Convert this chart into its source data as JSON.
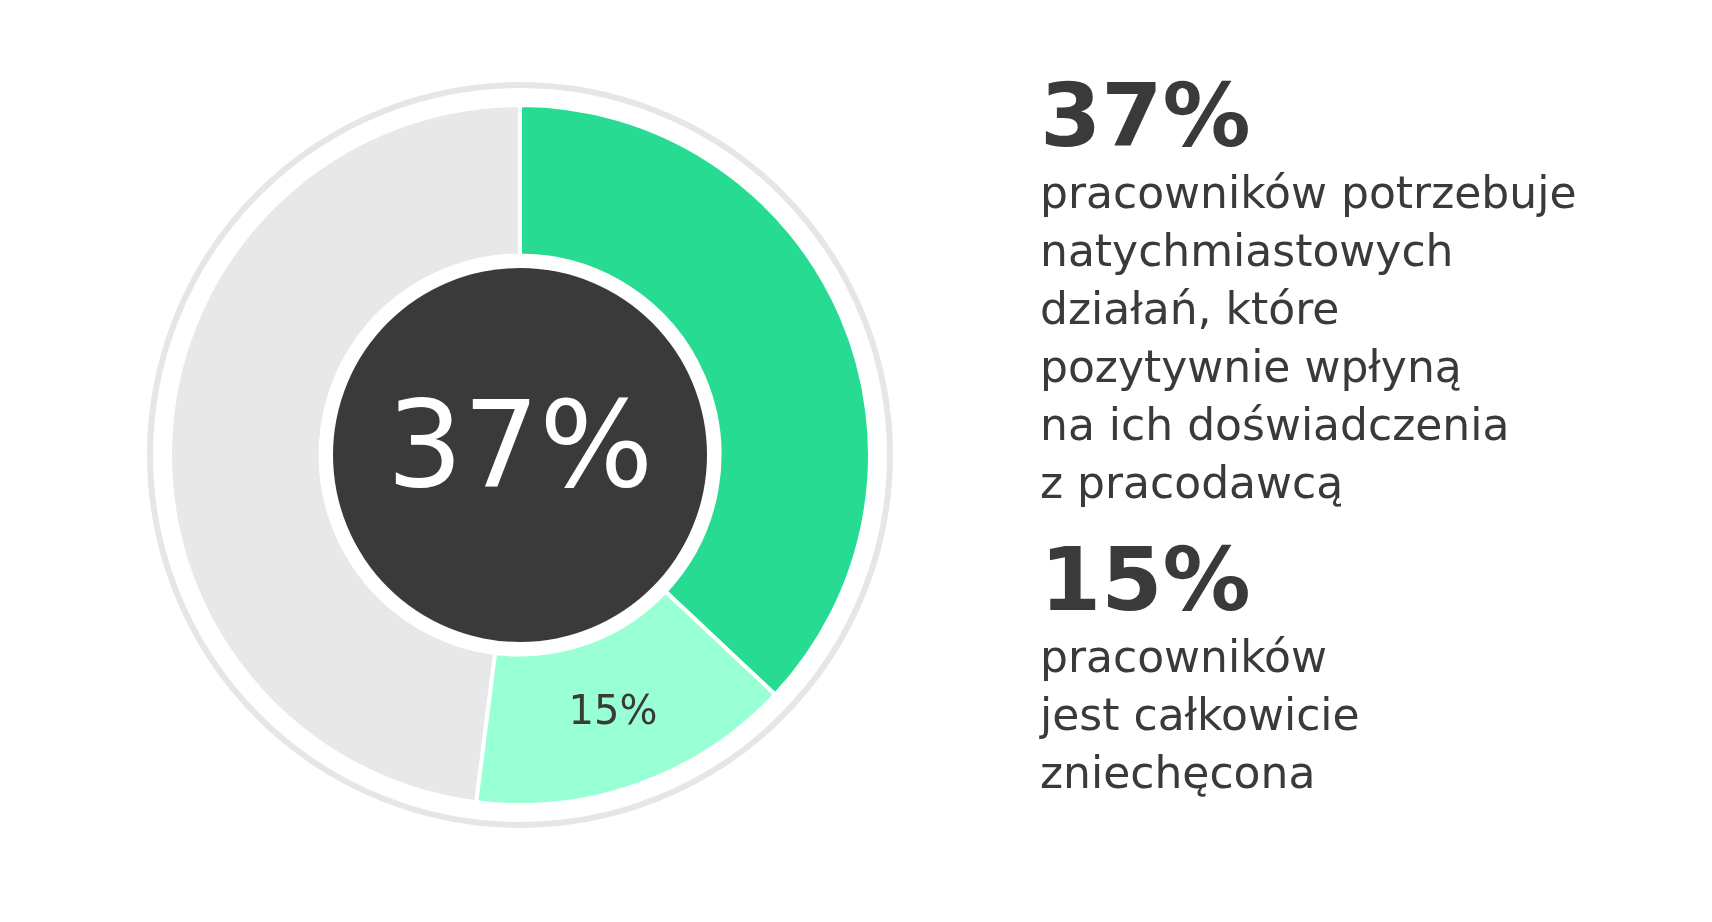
{
  "chart_data": {
    "type": "donut",
    "categories": [
      null,
      null,
      null
    ],
    "values": [
      37,
      15,
      48
    ],
    "colors": [
      "#27dc92",
      "#99ffd4",
      "#e8e8e8"
    ],
    "value_labels": [
      null,
      "15%",
      null
    ],
    "legend": false,
    "annotations": [
      "37%",
      "37%",
      "pracowników potrzebuje\nnatychmiastowych\ndziałań, które\npozytywnie wpłyną\nna ich doświadczenia\nz pracodawcą",
      "15%",
      "pracowników\njest całkowicie\nzniechęcona"
    ]
  }
}
